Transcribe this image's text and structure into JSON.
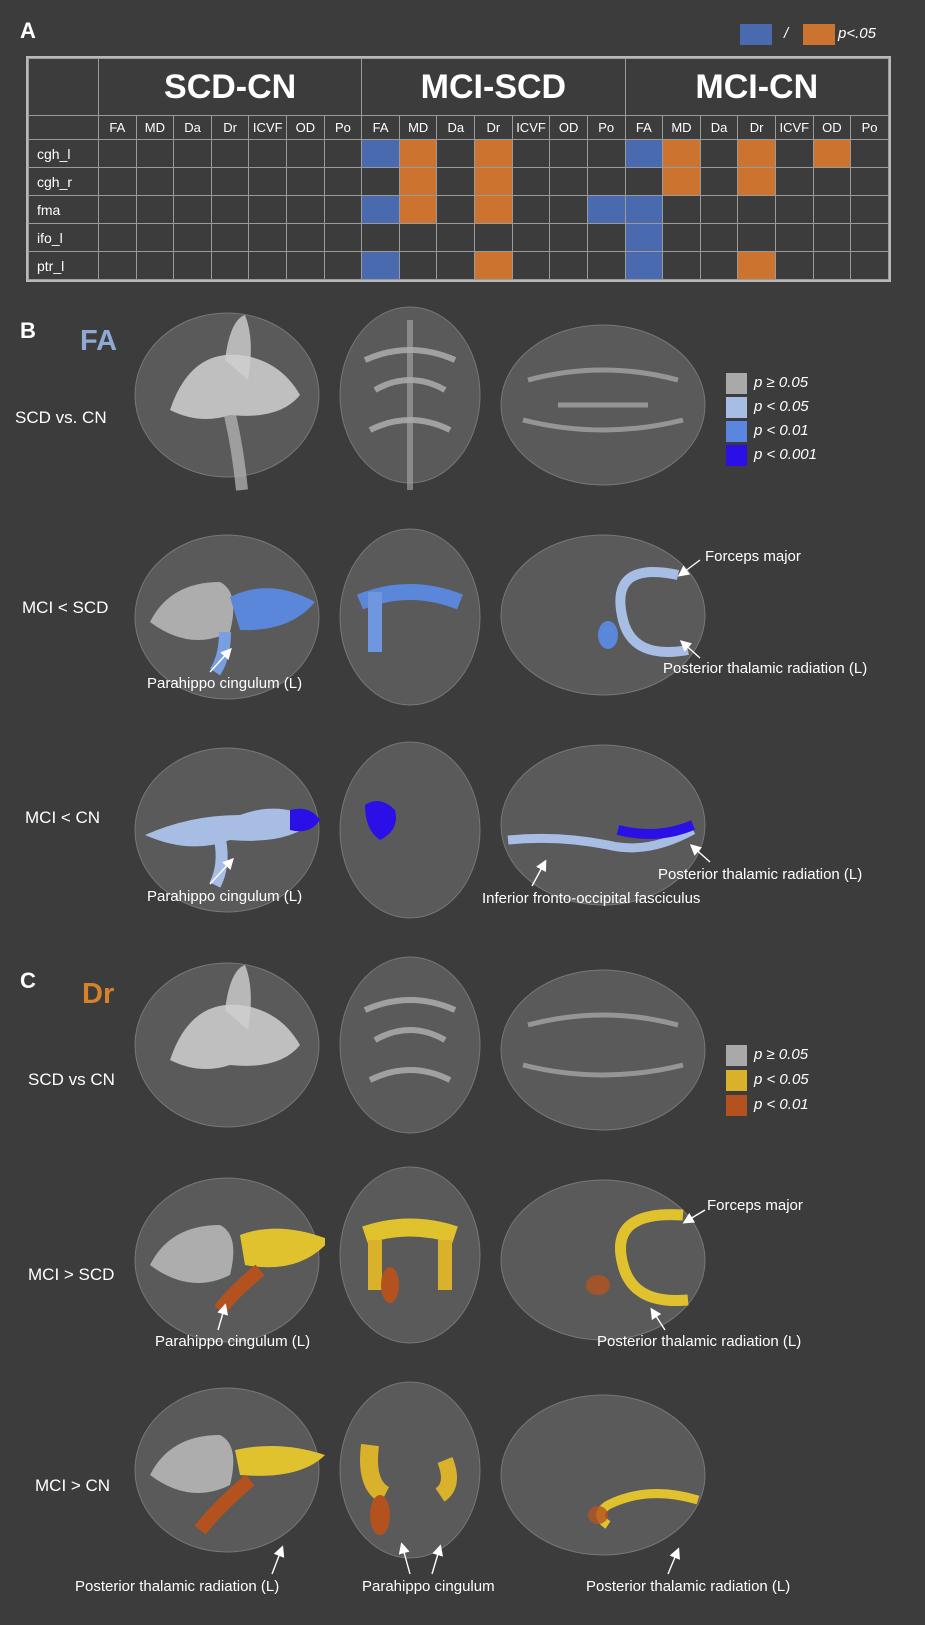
{
  "panel_a": {
    "letter": "A",
    "legend": {
      "separator": "/",
      "label": "p<.05",
      "blue": "#4a6aaf",
      "orange": "#cd7330"
    },
    "groups": [
      "SCD-CN",
      "MCI-SCD",
      "MCI-CN"
    ],
    "metrics": [
      "FA",
      "MD",
      "Da",
      "Dr",
      "ICVF",
      "OD",
      "Po"
    ],
    "rows": [
      {
        "label": "cgh_l",
        "cells": [
          "",
          "",
          "",
          "",
          "",
          "",
          "",
          "B",
          "O",
          "",
          "O",
          "",
          "",
          "",
          "B",
          "O",
          "",
          "O",
          "",
          "O",
          ""
        ]
      },
      {
        "label": "cgh_r",
        "cells": [
          "",
          "",
          "",
          "",
          "",
          "",
          "",
          "",
          "O",
          "",
          "O",
          "",
          "",
          "",
          "",
          "O",
          "",
          "O",
          "",
          "",
          ""
        ]
      },
      {
        "label": "fma",
        "cells": [
          "",
          "",
          "",
          "",
          "",
          "",
          "",
          "B",
          "O",
          "",
          "O",
          "",
          "",
          "B",
          "B",
          "",
          "",
          "",
          "",
          "",
          ""
        ]
      },
      {
        "label": "ifo_l",
        "cells": [
          "",
          "",
          "",
          "",
          "",
          "",
          "",
          "",
          "",
          "",
          "",
          "",
          "",
          "",
          "B",
          "",
          "",
          "",
          "",
          "",
          ""
        ]
      },
      {
        "label": "ptr_l",
        "cells": [
          "",
          "",
          "",
          "",
          "",
          "",
          "",
          "B",
          "",
          "",
          "O",
          "",
          "",
          "",
          "B",
          "",
          "",
          "O",
          "",
          "",
          ""
        ]
      }
    ]
  },
  "panel_b": {
    "letter": "B",
    "metric": "FA",
    "metric_color": "#8fa9d6",
    "legend": [
      {
        "label": "p ≥ 0.05",
        "color": "#a9a9a9"
      },
      {
        "label": "p < 0.05",
        "color": "#a8bde3"
      },
      {
        "label": "p < 0.01",
        "color": "#5b86e0"
      },
      {
        "label": "p < 0.001",
        "color": "#2a10e6"
      }
    ],
    "rows": [
      {
        "label": "SCD vs. CN"
      },
      {
        "label": "MCI < SCD"
      },
      {
        "label": "MCI < CN"
      }
    ],
    "annotations": {
      "forceps_major": "Forceps major",
      "ptr_1": "Posterior thalamic radiation (L)",
      "parahippo_1": "Parahippo cingulum (L)",
      "parahippo_2": "Parahippo cingulum (L)",
      "ifo": "Inferior fronto-occipital fasciculus",
      "ptr_2": "Posterior thalamic radiation (L)"
    }
  },
  "panel_c": {
    "letter": "C",
    "metric": "Dr",
    "metric_color": "#d7822a",
    "legend": [
      {
        "label": "p ≥ 0.05",
        "color": "#a9a9a9"
      },
      {
        "label": "p < 0.05",
        "color": "#d9b12a"
      },
      {
        "label": "p < 0.01",
        "color": "#b4521f"
      }
    ],
    "rows": [
      {
        "label": "SCD vs CN"
      },
      {
        "label": "MCI > SCD"
      },
      {
        "label": "MCI > CN"
      }
    ],
    "annotations": {
      "forceps_major": "Forceps major",
      "parahippo_1": "Parahippo cingulum (L)",
      "ptr_1": "Posterior thalamic radiation (L)",
      "ptr_2": "Posterior thalamic radiation (L)",
      "parahippo_2": "Parahippo cingulum",
      "ptr_3": "Posterior thalamic radiation (L)"
    }
  }
}
